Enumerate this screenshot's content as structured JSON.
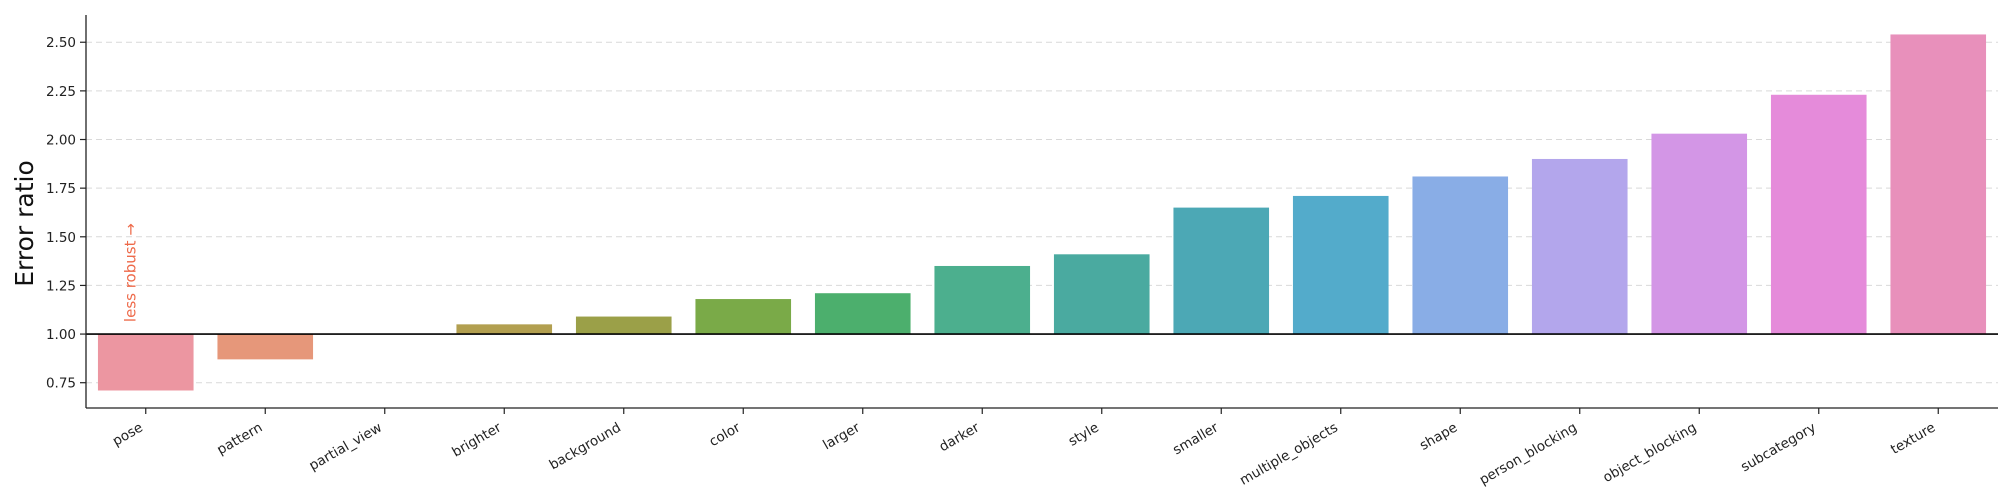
{
  "chart_data": {
    "type": "bar",
    "ylabel": "Error ratio",
    "xlabel": "",
    "title": "",
    "categories": [
      "pose",
      "pattern",
      "partial_view",
      "brighter",
      "background",
      "color",
      "larger",
      "darker",
      "style",
      "smaller",
      "multiple_objects",
      "shape",
      "person_blocking",
      "object_blocking",
      "subcategory",
      "texture"
    ],
    "values": [
      0.71,
      0.87,
      1.0,
      1.05,
      1.09,
      1.18,
      1.21,
      1.35,
      1.41,
      1.65,
      1.71,
      1.81,
      1.9,
      2.03,
      2.23,
      2.54
    ],
    "baseline": 1.0,
    "ylim": [
      0.62,
      2.64
    ],
    "yticks": [
      0.75,
      1.0,
      1.25,
      1.5,
      1.75,
      2.0,
      2.25,
      2.5
    ],
    "ytick_labels": [
      "0.75",
      "1.00",
      "1.25",
      "1.50",
      "1.75",
      "2.00",
      "2.25",
      "2.50"
    ],
    "grid": "horizontal dashed",
    "colors": [
      "#ec96a1",
      "#e6977a",
      "#cfa06a",
      "#b29f50",
      "#9ba048",
      "#7aaa48",
      "#4caf6d",
      "#4caf8e",
      "#4aaaa0",
      "#4ca8b5",
      "#53abcb",
      "#89ade6",
      "#b3a6ec",
      "#d396e6",
      "#e58bda",
      "#e890bb"
    ],
    "annotation": {
      "text": "less robust →",
      "color": "#ee6a4a",
      "category": "pose"
    }
  }
}
